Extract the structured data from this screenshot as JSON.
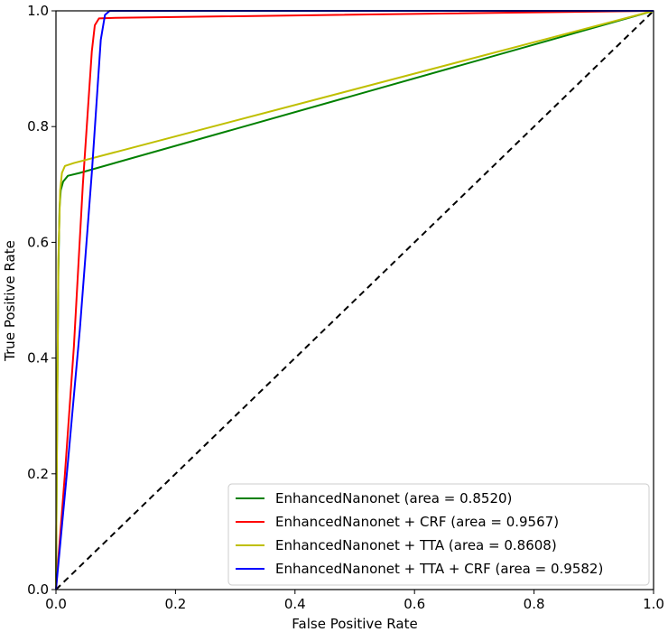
{
  "chart_data": {
    "type": "line",
    "xlabel": "False Positive Rate",
    "ylabel": "True Positive Rate",
    "xlim": [
      0.0,
      1.0
    ],
    "ylim": [
      0.0,
      1.0
    ],
    "xticks": [
      "0.0",
      "0.2",
      "0.4",
      "0.6",
      "0.8",
      "1.0"
    ],
    "yticks": [
      "0.0",
      "0.2",
      "0.4",
      "0.6",
      "0.8",
      "1.0"
    ],
    "grid": false,
    "legend_position": "lower-right",
    "series": [
      {
        "name": "EnhancedNanonet (area = 0.8520)",
        "color": "#008000",
        "points": [
          [
            0.0,
            0.0
          ],
          [
            0.002,
            0.3
          ],
          [
            0.004,
            0.55
          ],
          [
            0.006,
            0.66
          ],
          [
            0.008,
            0.69
          ],
          [
            0.012,
            0.705
          ],
          [
            0.02,
            0.715
          ],
          [
            0.04,
            0.72
          ],
          [
            1.0,
            1.0
          ]
        ]
      },
      {
        "name": "EnhancedNanonet + CRF (area = 0.9567)",
        "color": "#ff0000",
        "points": [
          [
            0.0,
            0.0
          ],
          [
            0.015,
            0.2
          ],
          [
            0.03,
            0.42
          ],
          [
            0.045,
            0.7
          ],
          [
            0.06,
            0.93
          ],
          [
            0.065,
            0.975
          ],
          [
            0.072,
            0.987
          ],
          [
            0.1,
            0.988
          ],
          [
            1.0,
            1.0
          ]
        ]
      },
      {
        "name": "EnhancedNanonet + TTA (area = 0.8608)",
        "color": "#bfbf00",
        "points": [
          [
            0.0,
            0.0
          ],
          [
            0.002,
            0.3
          ],
          [
            0.004,
            0.57
          ],
          [
            0.007,
            0.69
          ],
          [
            0.01,
            0.72
          ],
          [
            0.015,
            0.732
          ],
          [
            0.03,
            0.737
          ],
          [
            1.0,
            1.0
          ]
        ]
      },
      {
        "name": "EnhancedNanonet + TTA + CRF (area = 0.9582)",
        "color": "#0000ff",
        "points": [
          [
            0.0,
            0.0
          ],
          [
            0.02,
            0.22
          ],
          [
            0.04,
            0.45
          ],
          [
            0.06,
            0.72
          ],
          [
            0.075,
            0.95
          ],
          [
            0.082,
            0.993
          ],
          [
            0.09,
            1.0
          ],
          [
            1.0,
            1.0
          ]
        ]
      }
    ],
    "reference_line": {
      "color": "#000000",
      "style": "dashed",
      "points": [
        [
          0.0,
          0.0
        ],
        [
          1.0,
          1.0
        ]
      ]
    }
  }
}
